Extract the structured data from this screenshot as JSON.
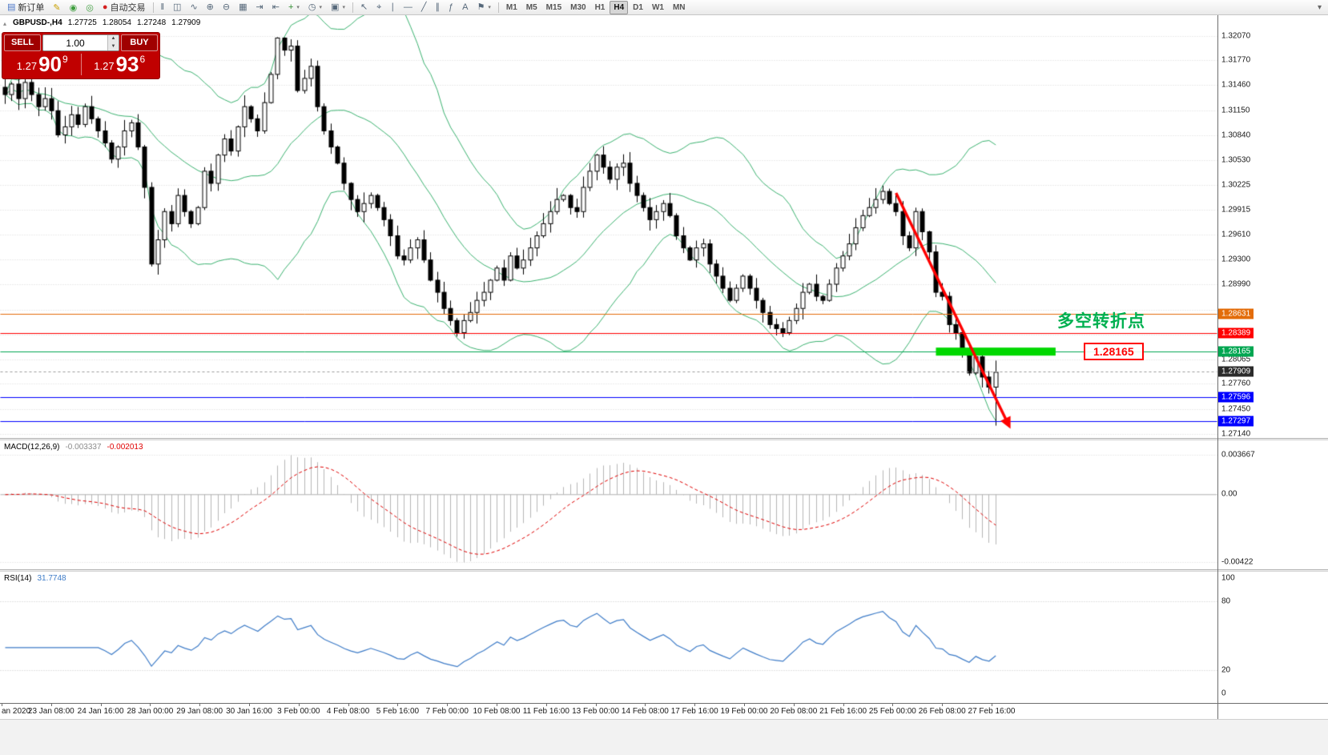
{
  "toolbar": {
    "new_order": "新订单",
    "auto_trading": "自动交易",
    "left_icons": [
      {
        "name": "metaeditor-icon",
        "glyph": "✎",
        "color": "#C8A000"
      },
      {
        "name": "market-watch-icon",
        "glyph": "◉",
        "color": "#3F9E3F"
      },
      {
        "name": "strategy-tester-icon",
        "glyph": "◎",
        "color": "#3F9E3F"
      }
    ],
    "chart_icons": [
      {
        "name": "bar-chart-icon",
        "glyph": "‖"
      },
      {
        "name": "candlestick-chart-icon",
        "glyph": "◫"
      },
      {
        "name": "line-chart-icon",
        "glyph": "∿"
      },
      {
        "name": "zoom-in-icon",
        "glyph": "⊕"
      },
      {
        "name": "zoom-out-icon",
        "glyph": "⊖"
      },
      {
        "name": "tile-windows-icon",
        "glyph": "▦"
      },
      {
        "name": "auto-scroll-icon",
        "glyph": "⇥"
      },
      {
        "name": "chart-shift-icon",
        "glyph": "⇤"
      },
      {
        "name": "indicators-icon",
        "glyph": "+",
        "color": "#2E8B2E",
        "caret": true
      },
      {
        "name": "periods-icon",
        "glyph": "◷",
        "caret": true
      },
      {
        "name": "templates-icon",
        "glyph": "▣",
        "caret": true
      }
    ],
    "line_icons": [
      {
        "name": "cursor-icon",
        "glyph": "↖"
      },
      {
        "name": "crosshair-icon",
        "glyph": "⌖"
      },
      {
        "name": "vertical-line-icon",
        "glyph": "∣"
      },
      {
        "name": "horizontal-line-icon",
        "glyph": "—"
      },
      {
        "name": "trendline-icon",
        "glyph": "╱"
      },
      {
        "name": "channel-icon",
        "glyph": "∥"
      },
      {
        "name": "fibonacci-icon",
        "glyph": "ƒ"
      },
      {
        "name": "text-icon",
        "glyph": "A"
      },
      {
        "name": "arrows-icon",
        "glyph": "⚑",
        "caret": true
      }
    ],
    "timeframes": [
      "M1",
      "M5",
      "M15",
      "M30",
      "H1",
      "H4",
      "D1",
      "W1",
      "MN"
    ],
    "active_timeframe": "H4",
    "overflow_glyph": "▾"
  },
  "trade_panel": {
    "sell_label": "SELL",
    "buy_label": "BUY",
    "volume": "1.00",
    "bid_prefix": "1.27",
    "bid_big": "90",
    "bid_sup": "9",
    "ask_prefix": "1.27",
    "ask_big": "93",
    "ask_sup": "6"
  },
  "chart_header": {
    "symbol": "GBPUSD-,H4",
    "open": "1.27725",
    "high": "1.28054",
    "low": "1.27248",
    "close": "1.27909"
  },
  "annotations": {
    "turning_point": {
      "text": "多空转折点",
      "color": "#00B050"
    },
    "callout": {
      "text": "1.28165",
      "color": "#FF0000"
    },
    "arrow": {
      "from_index": 134,
      "from_price": 1.3013,
      "to_index": 150.8,
      "to_price": 1.2728,
      "color": "#FF0000"
    },
    "highlight_bar": {
      "from_index": 140,
      "to_index": 158,
      "price": 1.28165,
      "color": "#00D800",
      "thickness": 10
    }
  },
  "levels": [
    {
      "text": "1.28631",
      "value": 1.28631,
      "color": "#E36C0A"
    },
    {
      "text": "1.28389",
      "value": 1.28389,
      "color": "#FF0000"
    },
    {
      "text": "1.28165",
      "value": 1.28165,
      "color": "#00A651"
    },
    {
      "text": "1.27596",
      "value": 1.27596,
      "color": "#0000FF"
    },
    {
      "text": "1.27297",
      "value": 1.27297,
      "color": "#0000FF"
    }
  ],
  "current_price": {
    "text": "1.27909",
    "value": 1.27909,
    "tag_color": "#2B2B2B"
  },
  "price_axis": {
    "labels": [
      {
        "text": "1.32070",
        "value": 1.3207
      },
      {
        "text": "1.31770",
        "value": 1.3177
      },
      {
        "text": "1.31460",
        "value": 1.3146
      },
      {
        "text": "1.31150",
        "value": 1.3115
      },
      {
        "text": "1.30840",
        "value": 1.3084
      },
      {
        "text": "1.30530",
        "value": 1.3053
      },
      {
        "text": "1.30225",
        "value": 1.30225
      },
      {
        "text": "1.29915",
        "value": 1.29915
      },
      {
        "text": "1.29610",
        "value": 1.2961
      },
      {
        "text": "1.29300",
        "value": 1.293
      },
      {
        "text": "1.28990",
        "value": 1.2899
      },
      {
        "text": "1.28065",
        "value": 1.28065
      },
      {
        "text": "1.27760",
        "value": 1.2776
      },
      {
        "text": "1.27450",
        "value": 1.2745
      },
      {
        "text": "1.27140",
        "value": 1.2714
      }
    ],
    "grid_extra": [
      1.2868,
      1.2837
    ]
  },
  "macd": {
    "label": "MACD(12,26,9)",
    "value_main": "-0.003337",
    "value_signal": "-0.002013",
    "fast": 12,
    "slow": 26,
    "signal": 9,
    "axis": [
      {
        "text": "0.003667",
        "pos": "max"
      },
      {
        "text": "0.00",
        "pos": "zero"
      },
      {
        "text": "-0.00422",
        "pos": "min"
      }
    ]
  },
  "rsi": {
    "label": "RSI(14)",
    "value": "31.7748",
    "period": 14,
    "levels": [
      80,
      20
    ],
    "axis_labels": [
      {
        "text": "100",
        "value": 100
      },
      {
        "text": "80",
        "value": 80
      },
      {
        "text": "20",
        "value": 20
      },
      {
        "text": "0",
        "value": 0
      }
    ]
  },
  "time_axis": {
    "labels": [
      "an 2020",
      "23 Jan 08:00",
      "24 Jan 16:00",
      "28 Jan 00:00",
      "29 Jan 08:00",
      "30 Jan 16:00",
      "3 Feb 00:00",
      "4 Feb 08:00",
      "5 Feb 16:00",
      "7 Feb 00:00",
      "10 Feb 08:00",
      "11 Feb 16:00",
      "13 Feb 00:00",
      "14 Feb 08:00",
      "17 Feb 16:00",
      "19 Feb 00:00",
      "20 Feb 08:00",
      "21 Feb 16:00",
      "25 Feb 00:00",
      "26 Feb 08:00",
      "27 Feb 16:00"
    ]
  },
  "chart_data": {
    "type": "candlestick",
    "symbol": "GBPUSD",
    "timeframe": "H4",
    "ylim": [
      1.2714,
      1.3207
    ],
    "bollinger": {
      "period": 20,
      "deviation": 2
    },
    "closes": [
      1.3135,
      1.3148,
      1.313,
      1.315,
      1.3135,
      1.312,
      1.313,
      1.3115,
      1.3085,
      1.3095,
      1.311,
      1.3098,
      1.312,
      1.3105,
      1.309,
      1.3075,
      1.3055,
      1.307,
      1.309,
      1.31,
      1.307,
      1.302,
      1.2925,
      1.2955,
      1.299,
      1.2975,
      1.301,
      1.299,
      1.2975,
      1.2995,
      1.304,
      1.3025,
      1.306,
      1.308,
      1.3065,
      1.3095,
      1.312,
      1.3105,
      1.309,
      1.3125,
      1.316,
      1.3205,
      1.319,
      1.3195,
      1.314,
      1.3155,
      1.317,
      1.312,
      1.309,
      1.307,
      1.305,
      1.3025,
      1.3005,
      1.299,
      1.3,
      1.301,
      1.2995,
      1.298,
      1.296,
      1.2935,
      1.293,
      1.2945,
      1.2955,
      1.293,
      1.2905,
      1.289,
      1.287,
      1.2855,
      1.284,
      1.2855,
      1.2865,
      1.288,
      1.289,
      1.2905,
      1.292,
      1.2905,
      1.2935,
      1.292,
      1.293,
      1.2945,
      1.296,
      1.2975,
      1.299,
      1.3005,
      1.301,
      1.2995,
      1.299,
      1.302,
      1.304,
      1.306,
      1.3045,
      1.303,
      1.3045,
      1.305,
      1.3025,
      1.301,
      1.2995,
      1.298,
      1.299,
      1.3,
      1.2985,
      1.296,
      1.2945,
      1.293,
      1.2945,
      1.295,
      1.2925,
      1.291,
      1.2895,
      1.288,
      1.2895,
      1.291,
      1.2895,
      1.288,
      1.2865,
      1.285,
      1.2845,
      1.284,
      1.2855,
      1.287,
      1.289,
      1.29,
      1.2885,
      1.288,
      1.29,
      1.292,
      1.2935,
      1.295,
      1.297,
      1.2985,
      1.2995,
      1.3005,
      1.3015,
      1.3,
      1.299,
      1.296,
      1.2945,
      1.299,
      1.2965,
      1.294,
      1.289,
      1.2885,
      1.285,
      1.284,
      1.2815,
      1.279,
      1.281,
      1.2785,
      1.27725,
      1.27909
    ],
    "last_candle": {
      "open": 1.27725,
      "high": 1.28054,
      "low": 1.27248,
      "close": 1.27909
    }
  },
  "colors": {
    "bollinger": "#3CB371",
    "rsi_line": "#3E7CC8",
    "macd_hist": "#B6B6B6",
    "macd_signal": "#E00000",
    "grid": "#DADADA",
    "bull": "#FFFFFF",
    "bear": "#000000",
    "outline": "#000000",
    "trade_panel_bg": "#C00000"
  }
}
